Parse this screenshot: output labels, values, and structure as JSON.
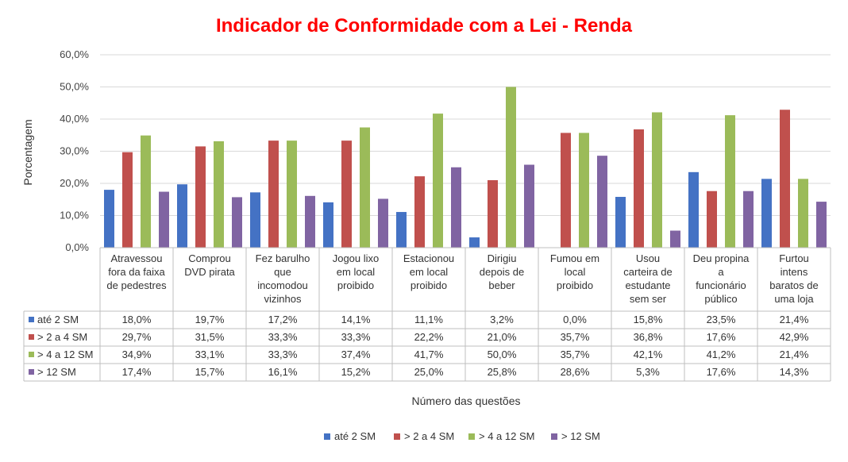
{
  "chart_data": {
    "type": "bar",
    "title": "Indicador de Conformidade com a Lei - Renda",
    "ylabel": "Porcentagem",
    "xlabel": "Número das questões",
    "ylim": [
      0,
      60
    ],
    "yticks": [
      "0,0%",
      "10,0%",
      "20,0%",
      "30,0%",
      "40,0%",
      "50,0%",
      "60,0%"
    ],
    "categories": [
      [
        "Atravessou",
        "fora da faixa",
        "de pedestres"
      ],
      [
        "Comprou",
        "DVD pirata"
      ],
      [
        "Fez barulho",
        "que",
        "incomodou",
        "vizinhos"
      ],
      [
        "Jogou lixo",
        "em local",
        "proibido"
      ],
      [
        "Estacionou",
        "em local",
        "proibido"
      ],
      [
        "Dirigiu",
        "depois de",
        "beber"
      ],
      [
        "Fumou em",
        "local",
        "proibido"
      ],
      [
        "Usou",
        "carteira de",
        "estudante",
        "sem ser"
      ],
      [
        "Deu propina",
        "a",
        "funcionário",
        "público"
      ],
      [
        "Furtou",
        "intens",
        "baratos de",
        "uma loja"
      ]
    ],
    "series": [
      {
        "name": "até 2 SM",
        "color": "#4472C4",
        "values": [
          18.0,
          19.7,
          17.2,
          14.1,
          11.1,
          3.2,
          0.0,
          15.8,
          23.5,
          21.4
        ],
        "labels": [
          "18,0%",
          "19,7%",
          "17,2%",
          "14,1%",
          "11,1%",
          "3,2%",
          "0,0%",
          "15,8%",
          "23,5%",
          "21,4%"
        ]
      },
      {
        "name": "> 2 a 4 SM",
        "color": "#C0504D",
        "values": [
          29.7,
          31.5,
          33.3,
          33.3,
          22.2,
          21.0,
          35.7,
          36.8,
          17.6,
          42.9
        ],
        "labels": [
          "29,7%",
          "31,5%",
          "33,3%",
          "33,3%",
          "22,2%",
          "21,0%",
          "35,7%",
          "36,8%",
          "17,6%",
          "42,9%"
        ]
      },
      {
        "name": "> 4 a 12 SM",
        "color": "#9BBB59",
        "values": [
          34.9,
          33.1,
          33.3,
          37.4,
          41.7,
          50.0,
          35.7,
          42.1,
          41.2,
          21.4
        ],
        "labels": [
          "34,9%",
          "33,1%",
          "33,3%",
          "37,4%",
          "41,7%",
          "50,0%",
          "35,7%",
          "42,1%",
          "41,2%",
          "21,4%"
        ]
      },
      {
        "name": "> 12 SM",
        "color": "#8064A2",
        "values": [
          17.4,
          15.7,
          16.1,
          15.2,
          25.0,
          25.8,
          28.6,
          5.3,
          17.6,
          14.3
        ],
        "labels": [
          "17,4%",
          "15,7%",
          "16,1%",
          "15,2%",
          "25,0%",
          "25,8%",
          "28,6%",
          "5,3%",
          "17,6%",
          "14,3%"
        ]
      }
    ],
    "grid": true,
    "legend_position": "bottom",
    "title_color": "#FF0000"
  }
}
